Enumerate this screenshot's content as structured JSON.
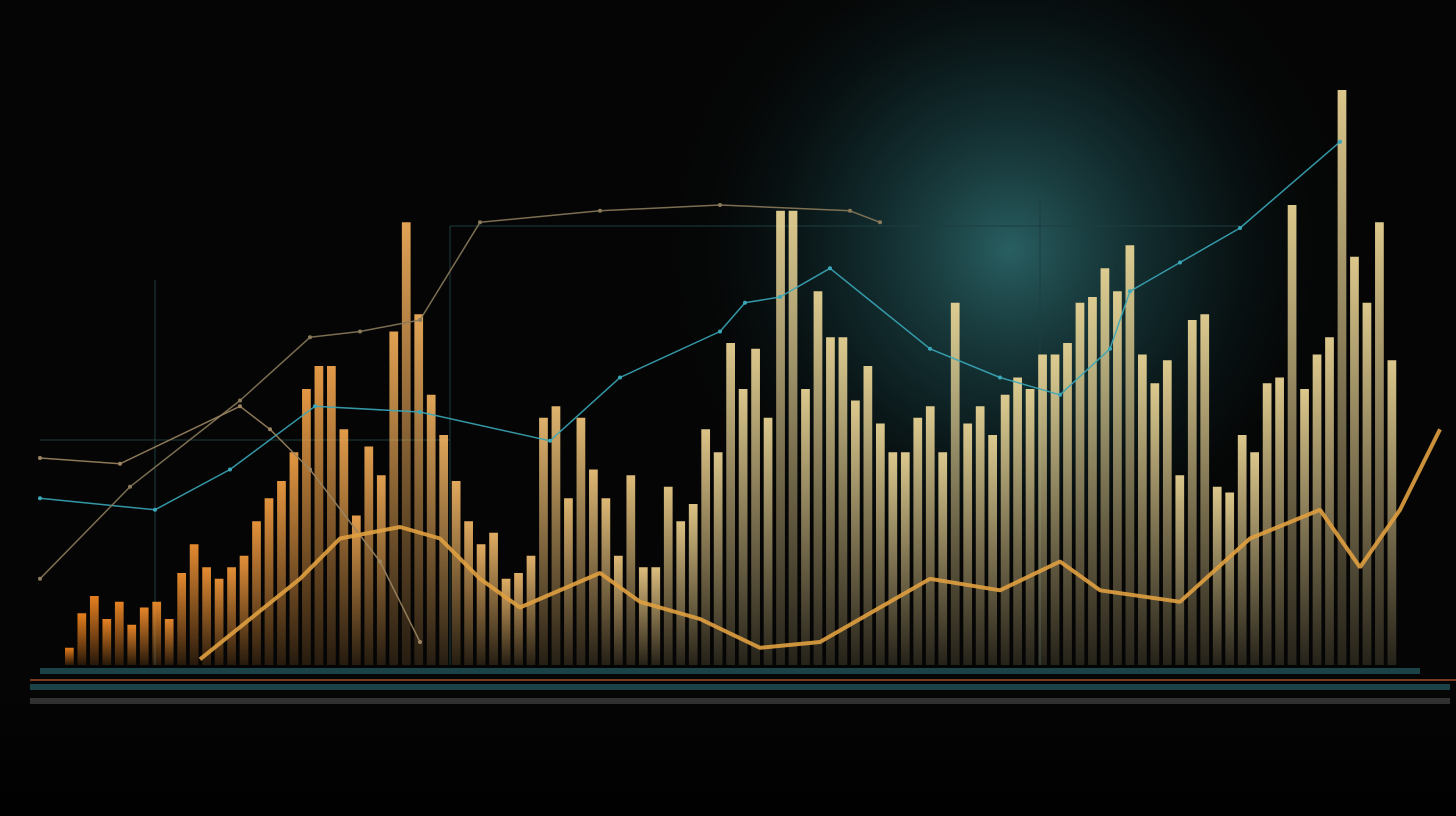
{
  "chart_data": [
    {
      "type": "bar",
      "values": [
        3,
        9,
        12,
        8,
        11,
        7,
        10,
        11,
        8,
        16,
        21,
        17,
        15,
        17,
        19,
        25,
        29,
        32,
        37,
        48,
        52,
        52,
        41,
        26,
        38,
        33,
        58,
        77,
        61,
        47,
        40,
        32,
        25,
        21,
        23,
        15,
        16,
        19,
        43,
        45,
        29,
        43,
        34,
        29,
        19,
        33,
        17,
        17,
        31,
        25,
        28,
        41,
        37,
        56,
        48,
        55,
        43,
        79,
        79,
        48,
        65,
        57,
        57,
        46,
        52,
        42,
        37,
        37,
        43,
        45,
        37,
        63,
        42,
        45,
        40,
        47,
        50,
        48,
        54,
        54,
        56,
        63,
        64,
        69,
        65,
        73,
        54,
        49,
        53,
        33,
        60,
        61,
        31,
        30,
        40,
        37,
        49,
        50,
        80,
        48,
        54,
        57,
        100,
        71,
        63,
        77,
        53
      ],
      "colors": [
        "#ff8a1e",
        "#f3dc9a"
      ],
      "ylim": [
        0,
        100
      ]
    },
    {
      "type": "line",
      "xlim": [
        0,
        1400
      ],
      "ylim": [
        0,
        100
      ],
      "series": [
        {
          "color": "#3aa7b8",
          "x": [
            0,
            115,
            190,
            275,
            380,
            510,
            580,
            680,
            705,
            740,
            790,
            890,
            960,
            1020,
            1070,
            1090,
            1140,
            1200,
            1300
          ],
          "values": [
            29,
            27,
            34,
            45,
            44,
            39,
            50,
            58,
            63,
            64,
            69,
            55,
            50,
            47,
            55,
            65,
            70,
            76,
            91
          ]
        },
        {
          "color": "#8a7a5a",
          "x": [
            0,
            90,
            200,
            270,
            320,
            380,
            440,
            560,
            680,
            810,
            840
          ],
          "values": [
            15,
            31,
            46,
            57,
            58,
            60,
            77,
            79,
            80,
            79,
            77
          ]
        },
        {
          "color": "#9c8560",
          "x": [
            0,
            80,
            200,
            230,
            270,
            340,
            380
          ],
          "values": [
            36,
            35,
            45,
            41,
            34,
            18,
            4
          ]
        },
        {
          "color": "#e0a040",
          "x": [
            160,
            260,
            300,
            360,
            400,
            440,
            480,
            560,
            600,
            660,
            720,
            780,
            840,
            890,
            960,
            1020,
            1060,
            1140,
            1210,
            1280,
            1320,
            1360,
            1400
          ],
          "values": [
            1,
            15,
            22,
            24,
            22,
            15,
            10,
            16,
            11,
            8,
            3,
            4,
            10,
            15,
            13,
            18,
            13,
            11,
            22,
            27,
            17,
            27,
            41
          ]
        }
      ]
    }
  ]
}
